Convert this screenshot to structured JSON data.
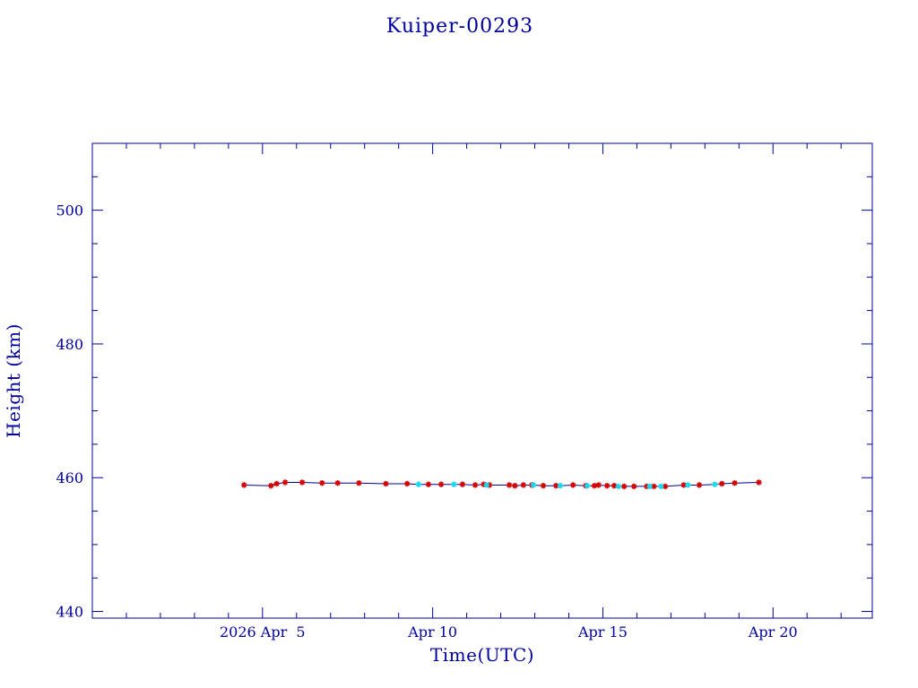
{
  "chart_data": {
    "type": "scatter",
    "title": "Kuiper-00293",
    "xlabel": "Time(UTC)",
    "ylabel": "Height (km)",
    "xlim": [
      "2026-03-31T00:00",
      "2026-04-22T22:00"
    ],
    "ylim": [
      439,
      510
    ],
    "x_ticks": [
      {
        "date": "2026-04-05",
        "label": "2026 Apr  5"
      },
      {
        "date": "2026-04-10",
        "label": "Apr 10"
      },
      {
        "date": "2026-04-15",
        "label": "Apr 15"
      },
      {
        "date": "2026-04-20",
        "label": "Apr 20"
      }
    ],
    "y_ticks": [
      440,
      460,
      480,
      500
    ],
    "grid": false,
    "colors": {
      "axes": "#00009b",
      "line": "#00009b",
      "primary_marker": "#d40000",
      "secondary_marker": "#18d8f0"
    },
    "series": [
      {
        "marker": "red-asterisk",
        "color": "#d40000",
        "points": [
          {
            "x": "2026-04-04T11:00",
            "y": 458.9
          },
          {
            "x": "2026-04-05T06:00",
            "y": 458.8
          },
          {
            "x": "2026-04-05T10:00",
            "y": 459.1
          },
          {
            "x": "2026-04-05T16:00",
            "y": 459.3
          },
          {
            "x": "2026-04-06T04:00",
            "y": 459.3
          },
          {
            "x": "2026-04-06T18:00",
            "y": 459.2
          },
          {
            "x": "2026-04-07T05:00",
            "y": 459.2
          },
          {
            "x": "2026-04-07T20:00",
            "y": 459.2
          },
          {
            "x": "2026-04-08T15:00",
            "y": 459.1
          },
          {
            "x": "2026-04-09T06:00",
            "y": 459.1
          },
          {
            "x": "2026-04-09T21:00",
            "y": 459.0
          },
          {
            "x": "2026-04-10T06:00",
            "y": 459.0
          },
          {
            "x": "2026-04-10T21:00",
            "y": 459.0
          },
          {
            "x": "2026-04-11T06:00",
            "y": 458.9
          },
          {
            "x": "2026-04-11T12:00",
            "y": 459.0
          },
          {
            "x": "2026-04-11T16:00",
            "y": 458.9
          },
          {
            "x": "2026-04-12T06:00",
            "y": 458.9
          },
          {
            "x": "2026-04-12T10:00",
            "y": 458.8
          },
          {
            "x": "2026-04-12T16:00",
            "y": 458.9
          },
          {
            "x": "2026-04-12T22:00",
            "y": 458.9
          },
          {
            "x": "2026-04-13T06:00",
            "y": 458.8
          },
          {
            "x": "2026-04-13T15:00",
            "y": 458.8
          },
          {
            "x": "2026-04-14T03:00",
            "y": 458.9
          },
          {
            "x": "2026-04-14T12:00",
            "y": 458.8
          },
          {
            "x": "2026-04-14T18:00",
            "y": 458.8
          },
          {
            "x": "2026-04-14T21:00",
            "y": 458.9
          },
          {
            "x": "2026-04-15T03:00",
            "y": 458.8
          },
          {
            "x": "2026-04-15T08:00",
            "y": 458.8
          },
          {
            "x": "2026-04-15T15:00",
            "y": 458.7
          },
          {
            "x": "2026-04-15T22:00",
            "y": 458.7
          },
          {
            "x": "2026-04-16T07:00",
            "y": 458.7
          },
          {
            "x": "2026-04-16T12:00",
            "y": 458.7
          },
          {
            "x": "2026-04-16T20:00",
            "y": 458.7
          },
          {
            "x": "2026-04-17T09:00",
            "y": 458.9
          },
          {
            "x": "2026-04-17T20:00",
            "y": 458.9
          },
          {
            "x": "2026-04-18T12:00",
            "y": 459.1
          },
          {
            "x": "2026-04-18T21:00",
            "y": 459.2
          },
          {
            "x": "2026-04-19T14:00",
            "y": 459.3
          }
        ]
      },
      {
        "marker": "cyan-asterisk",
        "color": "#18d8f0",
        "points": [
          {
            "x": "2026-04-09T14:00",
            "y": 459.0
          },
          {
            "x": "2026-04-10T15:00",
            "y": 459.0
          },
          {
            "x": "2026-04-11T14:00",
            "y": 458.9
          },
          {
            "x": "2026-04-12T23:00",
            "y": 458.9
          },
          {
            "x": "2026-04-13T18:00",
            "y": 458.8
          },
          {
            "x": "2026-04-14T13:00",
            "y": 458.8
          },
          {
            "x": "2026-04-15T11:00",
            "y": 458.7
          },
          {
            "x": "2026-04-16T09:00",
            "y": 458.7
          },
          {
            "x": "2026-04-16T17:00",
            "y": 458.7
          },
          {
            "x": "2026-04-17T12:00",
            "y": 458.9
          },
          {
            "x": "2026-04-18T07:00",
            "y": 459.0
          }
        ]
      }
    ]
  }
}
